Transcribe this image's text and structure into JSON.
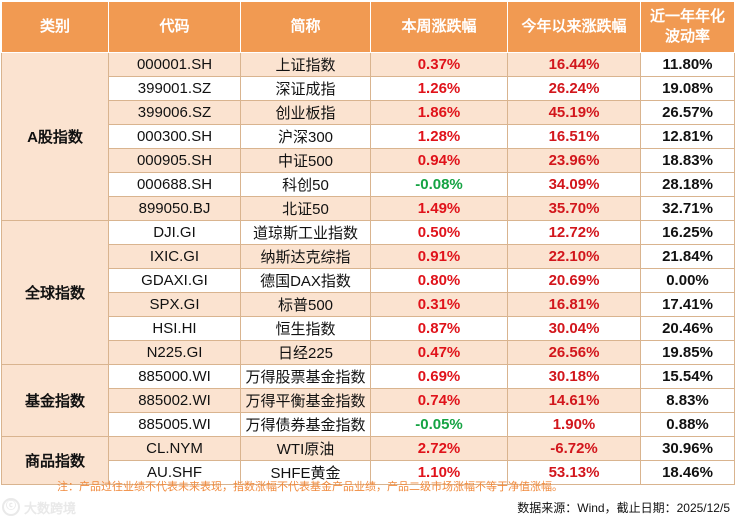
{
  "headers": [
    "类别",
    "代码",
    "简称",
    "本周涨跌幅",
    "今年以来涨跌幅",
    "近一年年化",
    "波动率"
  ],
  "colors": {
    "header_bg": "#f19a52",
    "alt_bg": "#fbe3d0",
    "up": "#e0121a",
    "down": "#15a343",
    "note": "#f08a3c"
  },
  "groups": [
    {
      "category": "A股指数",
      "rows": [
        {
          "code": "000001.SH",
          "name": "上证指数",
          "week": "0.37%",
          "ytd": "16.44%",
          "vol": "11.80%"
        },
        {
          "code": "399001.SZ",
          "name": "深证成指",
          "week": "1.26%",
          "ytd": "26.24%",
          "vol": "19.08%"
        },
        {
          "code": "399006.SZ",
          "name": "创业板指",
          "week": "1.86%",
          "ytd": "45.19%",
          "vol": "26.57%"
        },
        {
          "code": "000300.SH",
          "name": "沪深300",
          "week": "1.28%",
          "ytd": "16.51%",
          "vol": "12.81%"
        },
        {
          "code": "000905.SH",
          "name": "中证500",
          "week": "0.94%",
          "ytd": "23.96%",
          "vol": "18.83%"
        },
        {
          "code": "000688.SH",
          "name": "科创50",
          "week": "-0.08%",
          "ytd": "34.09%",
          "vol": "28.18%"
        },
        {
          "code": "899050.BJ",
          "name": "北证50",
          "week": "1.49%",
          "ytd": "35.70%",
          "vol": "32.71%"
        }
      ]
    },
    {
      "category": "全球指数",
      "rows": [
        {
          "code": "DJI.GI",
          "name": "道琼斯工业指数",
          "week": "0.50%",
          "ytd": "12.72%",
          "vol": "16.25%"
        },
        {
          "code": "IXIC.GI",
          "name": "纳斯达克综指",
          "week": "0.91%",
          "ytd": "22.10%",
          "vol": "21.84%"
        },
        {
          "code": "GDAXI.GI",
          "name": "德国DAX指数",
          "week": "0.80%",
          "ytd": "20.69%",
          "vol": "0.00%"
        },
        {
          "code": "SPX.GI",
          "name": "标普500",
          "week": "0.31%",
          "ytd": "16.81%",
          "vol": "17.41%"
        },
        {
          "code": "HSI.HI",
          "name": "恒生指数",
          "week": "0.87%",
          "ytd": "30.04%",
          "vol": "20.46%"
        },
        {
          "code": "N225.GI",
          "name": "日经225",
          "week": "0.47%",
          "ytd": "26.56%",
          "vol": "19.85%"
        }
      ]
    },
    {
      "category": "基金指数",
      "rows": [
        {
          "code": "885000.WI",
          "name": "万得股票基金指数",
          "week": "0.69%",
          "ytd": "30.18%",
          "vol": "15.54%"
        },
        {
          "code": "885002.WI",
          "name": "万得平衡基金指数",
          "week": "0.74%",
          "ytd": "14.61%",
          "vol": "8.83%"
        },
        {
          "code": "885005.WI",
          "name": "万得债券基金指数",
          "week": "-0.05%",
          "ytd": "1.90%",
          "vol": "0.88%"
        }
      ]
    },
    {
      "category": "商品指数",
      "rows": [
        {
          "code": "CL.NYM",
          "name": "WTI原油",
          "week": "2.72%",
          "ytd": "-6.72%",
          "vol": "30.96%"
        },
        {
          "code": "AU.SHF",
          "name": "SHFE黄金",
          "week": "1.10%",
          "ytd": "53.13%",
          "vol": "18.46%"
        }
      ]
    }
  ],
  "note": "注：产品过往业绩不代表未来表现，指数涨幅不代表基金产品业绩，产品二级市场涨幅不等于净值涨幅。",
  "source": "数据来源：Wind，截止日期：2025/12/5",
  "watermark": "大数跨境"
}
